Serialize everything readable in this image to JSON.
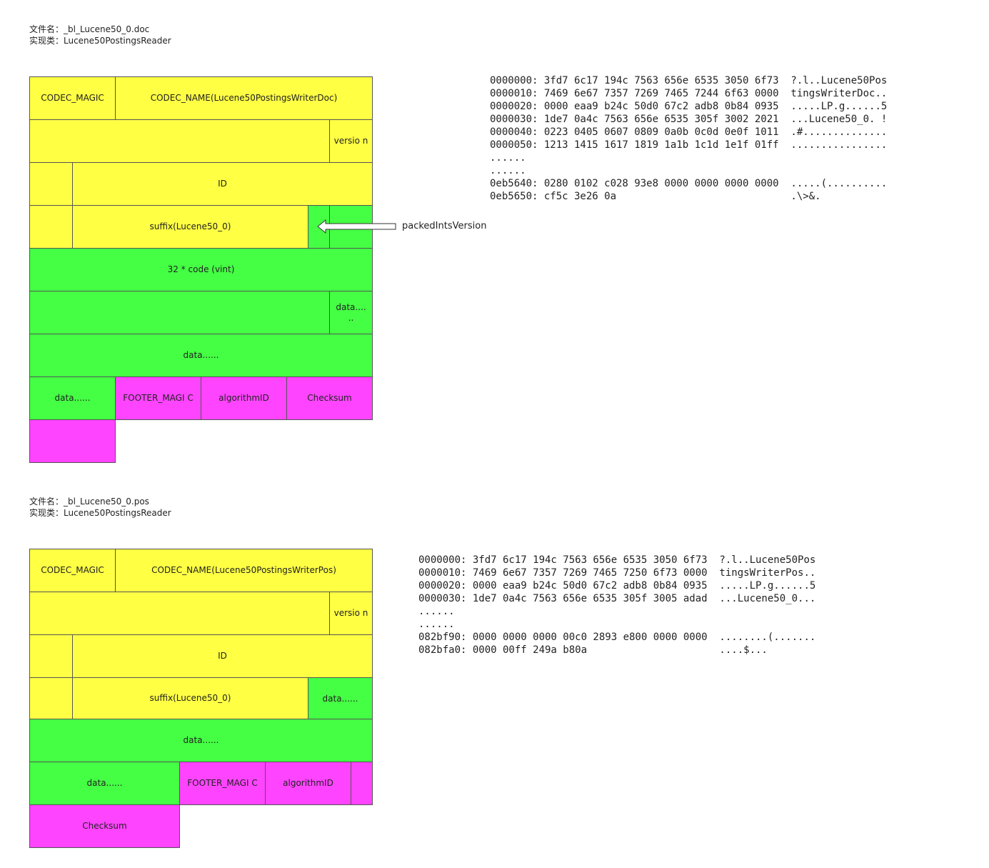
{
  "colors": {
    "header": "#ffff44",
    "data": "#44ff44",
    "footer": "#ff44ff",
    "border": "#555555"
  },
  "doc": {
    "file_line": "文件名：_bl_Lucene50_0.doc",
    "impl_line": "实现类：Lucene50PostingsReader",
    "cells": {
      "codec_magic": "CODEC_MAGIC",
      "codec_name": "CODEC_NAME(Lucene50PostingsWriterDoc)",
      "version": "versio n",
      "id": "ID",
      "suffix": "suffix(Lucene50_0)",
      "code": "32 * code (vint)",
      "data_short": "data.... ..",
      "data_row": "data......",
      "data_footer": "data......",
      "footer_magic": "FOOTER_MAGI C",
      "algorithm_id": "algorithmID",
      "checksum": "Checksum"
    },
    "annotation": "packedIntsVersion",
    "hex": [
      "0000000: 3fd7 6c17 194c 7563 656e 6535 3050 6f73  ?.l..Lucene50Pos",
      "0000010: 7469 6e67 7357 7269 7465 7244 6f63 0000  tingsWriterDoc..",
      "0000020: 0000 eaa9 b24c 50d0 67c2 adb8 0b84 0935  .....LP.g......5",
      "0000030: 1de7 0a4c 7563 656e 6535 305f 3002 2021  ...Lucene50_0. !",
      "0000040: 0223 0405 0607 0809 0a0b 0c0d 0e0f 1011  .#..............",
      "0000050: 1213 1415 1617 1819 1a1b 1c1d 1e1f 01ff  ................",
      "......",
      "......",
      "0eb5640: 0280 0102 c028 93e8 0000 0000 0000 0000  .....(..........",
      "0eb5650: cf5c 3e26 0a                             .\\>&."
    ]
  },
  "pos": {
    "file_line": "文件名：_bl_Lucene50_0.pos",
    "impl_line": "实现类：Lucene50PostingsReader",
    "cells": {
      "codec_magic": "CODEC_MAGIC",
      "codec_name": "CODEC_NAME(Lucene50PostingsWriterPos)",
      "version": "versio n",
      "id": "ID",
      "suffix": "suffix(Lucene50_0)",
      "data_side": "data......",
      "data_row": "data......",
      "data_footer": "data......",
      "footer_magic": "FOOTER_MAGI C",
      "algorithm_id": "algorithmID",
      "checksum": "Checksum"
    },
    "hex": [
      "0000000: 3fd7 6c17 194c 7563 656e 6535 3050 6f73  ?.l..Lucene50Pos",
      "0000010: 7469 6e67 7357 7269 7465 7250 6f73 0000  tingsWriterPos..",
      "0000020: 0000 eaa9 b24c 50d0 67c2 adb8 0b84 0935  .....LP.g......5",
      "0000030: 1de7 0a4c 7563 656e 6535 305f 3005 adad  ...Lucene50_0...",
      "......",
      "......",
      "082bf90: 0000 0000 0000 00c0 2893 e800 0000 0000  ........(.......",
      "082bfa0: 0000 00ff 249a b80a                      ....$..."
    ]
  }
}
